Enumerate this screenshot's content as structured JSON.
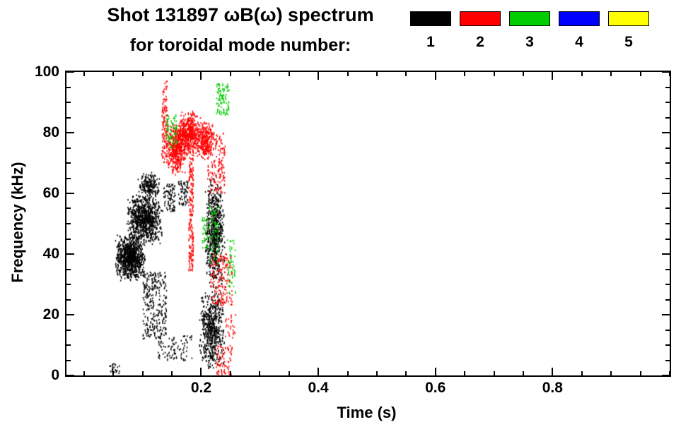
{
  "header": {
    "title": "Shot 131897 ωB(ω) spectrum",
    "subtitle": "for toroidal mode number:"
  },
  "legend": {
    "modes": [
      {
        "label": "1",
        "color": "#000000"
      },
      {
        "label": "2",
        "color": "#ff0000"
      },
      {
        "label": "3",
        "color": "#00cc00"
      },
      {
        "label": "4",
        "color": "#0000ff"
      },
      {
        "label": "5",
        "color": "#ffff00"
      }
    ]
  },
  "chart_data": {
    "type": "scatter",
    "title": "Shot 131897 ωB(ω) spectrum for toroidal mode number",
    "xlabel": "Time (s)",
    "ylabel": "Frequency (kHz)",
    "xlim": [
      -0.03,
      1.0
    ],
    "ylim": [
      0,
      100
    ],
    "xticks": [
      0.2,
      0.4,
      0.6,
      0.8
    ],
    "xtick_labels": [
      "0.2",
      "0.4",
      "0.6",
      "0.8"
    ],
    "yticks": [
      0,
      20,
      40,
      60,
      80,
      100
    ],
    "ytick_labels": [
      "0",
      "20",
      "40",
      "60",
      "80",
      "100"
    ],
    "x_minor_step": 0.05,
    "y_minor_step": 5,
    "grid": false,
    "legend_position": "top-right",
    "cluster_format": [
      "t_min",
      "t_max",
      "f_min",
      "f_max",
      "count",
      "gaussian"
    ],
    "series": [
      {
        "name": "1",
        "color": "#000000",
        "clusters": [
          [
            0.052,
            0.105,
            31,
            47,
            900,
            1
          ],
          [
            0.07,
            0.135,
            43,
            60,
            800,
            1
          ],
          [
            0.09,
            0.13,
            58,
            67,
            200,
            1
          ],
          [
            0.1,
            0.14,
            12,
            34,
            260,
            0
          ],
          [
            0.125,
            0.185,
            5,
            13,
            90,
            0
          ],
          [
            0.043,
            0.06,
            0.5,
            4,
            25,
            0
          ],
          [
            0.195,
            0.24,
            2,
            28,
            550,
            1
          ],
          [
            0.205,
            0.24,
            28,
            66,
            650,
            1
          ],
          [
            0.135,
            0.155,
            54,
            63,
            80,
            0
          ],
          [
            0.16,
            0.178,
            56,
            64,
            60,
            0
          ]
        ]
      },
      {
        "name": "2",
        "color": "#ff0000",
        "clusters": [
          [
            0.132,
            0.142,
            70,
            97,
            130,
            0
          ],
          [
            0.14,
            0.175,
            66,
            84,
            500,
            1
          ],
          [
            0.16,
            0.2,
            72,
            87,
            450,
            1
          ],
          [
            0.19,
            0.222,
            71,
            84,
            260,
            1
          ],
          [
            0.178,
            0.186,
            34,
            72,
            180,
            0
          ],
          [
            0.21,
            0.24,
            60,
            80,
            160,
            0
          ],
          [
            0.215,
            0.252,
            23,
            40,
            170,
            0
          ],
          [
            0.225,
            0.252,
            0,
            10,
            70,
            0
          ],
          [
            0.24,
            0.258,
            12,
            20,
            25,
            0
          ]
        ]
      },
      {
        "name": "3",
        "color": "#00cc00",
        "clusters": [
          [
            0.138,
            0.158,
            75,
            86,
            70,
            0
          ],
          [
            0.225,
            0.247,
            86,
            96,
            90,
            0
          ],
          [
            0.213,
            0.23,
            37,
            56,
            70,
            0
          ],
          [
            0.243,
            0.258,
            27,
            45,
            50,
            0
          ],
          [
            0.2,
            0.212,
            42,
            52,
            30,
            0
          ]
        ]
      },
      {
        "name": "4",
        "color": "#0000ff",
        "clusters": []
      },
      {
        "name": "5",
        "color": "#ffff00",
        "clusters": []
      }
    ]
  }
}
